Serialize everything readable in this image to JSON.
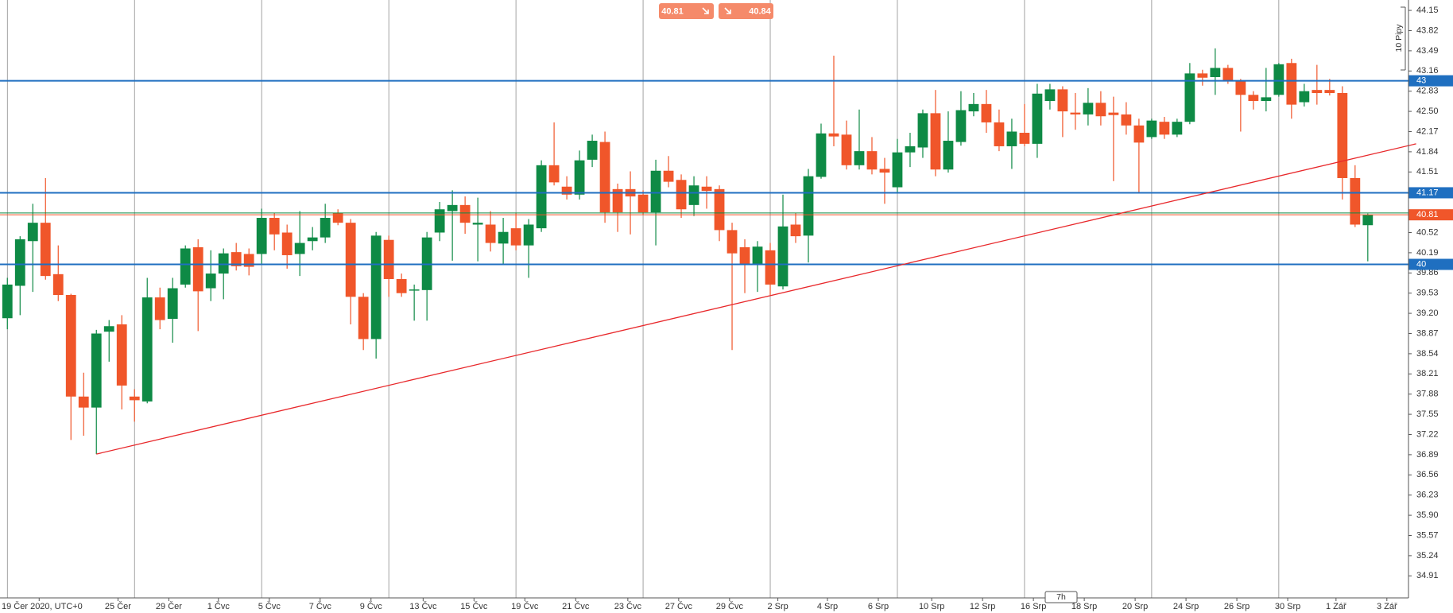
{
  "chart_data": {
    "type": "candlestick",
    "up_color": "#0e8a45",
    "down_color": "#f0562a",
    "open": [
      39.12,
      39.65,
      40.38,
      40.68,
      39.84,
      39.5,
      37.84,
      37.66,
      38.9,
      39.02,
      37.84,
      37.76,
      39.46,
      39.11,
      39.67,
      40.28,
      39.61,
      39.85,
      40.2,
      40.17,
      40.17,
      40.76,
      40.52,
      40.17,
      40.38,
      40.44,
      40.84,
      40.68,
      39.47,
      38.78,
      40.4,
      39.76,
      39.58,
      39.58,
      40.52,
      40.87,
      40.97,
      40.65,
      40.65,
      40.34,
      40.59,
      40.31,
      40.59,
      41.62,
      41.27,
      41.14,
      41.71,
      42.0,
      41.23,
      41.23,
      41.14,
      40.85,
      41.53,
      41.38,
      40.97,
      41.27,
      41.23,
      40.56,
      40.28,
      39.99,
      40.23,
      39.64,
      40.65,
      40.47,
      41.43,
      42.14,
      42.12,
      41.62,
      41.85,
      41.56,
      41.26,
      41.83,
      41.91,
      42.47,
      41.55,
      42.0,
      42.5,
      42.62,
      42.32,
      41.93,
      42.15,
      41.97,
      42.67,
      42.86,
      42.48,
      42.45,
      42.64,
      42.48,
      42.45,
      42.27,
      42.08,
      42.33,
      42.12,
      42.33,
      43.12,
      43.06,
      43.21,
      43.0,
      42.77,
      42.67,
      42.77,
      43.29,
      42.65,
      42.85,
      42.85,
      42.8,
      41.41,
      40.64
    ],
    "high": [
      39.78,
      40.46,
      40.99,
      41.41,
      40.31,
      39.52,
      38.23,
      38.93,
      39.09,
      39.17,
      37.96,
      39.78,
      39.62,
      39.78,
      40.31,
      40.41,
      40.23,
      40.26,
      40.35,
      40.26,
      40.91,
      40.84,
      40.65,
      40.87,
      40.61,
      40.99,
      40.9,
      40.74,
      39.53,
      40.53,
      40.47,
      39.85,
      39.67,
      40.53,
      41.02,
      41.21,
      41.11,
      41.09,
      40.87,
      40.76,
      40.84,
      40.74,
      41.7,
      42.32,
      41.44,
      41.86,
      42.12,
      42.17,
      41.32,
      41.52,
      41.21,
      41.71,
      41.77,
      41.47,
      41.44,
      41.44,
      41.29,
      40.68,
      40.41,
      40.38,
      40.35,
      41.14,
      40.84,
      41.56,
      42.3,
      43.41,
      42.35,
      42.53,
      42.08,
      41.74,
      42.05,
      42.15,
      42.53,
      42.85,
      42.5,
      42.83,
      42.8,
      42.85,
      42.53,
      42.38,
      42.62,
      42.95,
      42.95,
      42.91,
      42.8,
      42.88,
      42.83,
      42.74,
      42.65,
      42.38,
      42.38,
      42.41,
      42.38,
      43.29,
      43.18,
      43.53,
      43.26,
      43.03,
      42.83,
      43.21,
      43.29,
      43.36,
      42.95,
      43.26,
      43.03,
      42.91,
      41.62,
      40.83
    ],
    "low": [
      38.94,
      39.17,
      39.55,
      39.75,
      39.4,
      37.13,
      37.2,
      36.9,
      38.41,
      37.63,
      37.43,
      37.73,
      38.94,
      38.72,
      39.62,
      38.91,
      39.4,
      39.43,
      39.9,
      39.82,
      40.0,
      40.23,
      39.93,
      39.81,
      40.23,
      40.35,
      40.64,
      39.02,
      38.6,
      38.46,
      39.47,
      39.47,
      39.08,
      39.08,
      40.38,
      40.06,
      40.5,
      40.05,
      40.21,
      40.0,
      40.23,
      39.78,
      40.53,
      41.29,
      41.06,
      41.06,
      41.59,
      40.68,
      40.53,
      40.49,
      40.81,
      40.31,
      41.26,
      40.76,
      40.79,
      40.91,
      40.38,
      38.6,
      39.53,
      39.55,
      39.5,
      39.59,
      40.35,
      40.03,
      41.4,
      41.93,
      41.55,
      41.55,
      41.47,
      40.99,
      41.17,
      41.59,
      41.74,
      41.44,
      41.5,
      41.94,
      42.42,
      42.15,
      41.85,
      41.56,
      41.93,
      41.74,
      42.53,
      42.08,
      42.2,
      42.27,
      42.27,
      41.36,
      42.12,
      41.17,
      42.05,
      42.05,
      42.08,
      42.29,
      42.92,
      42.77,
      42.95,
      42.17,
      42.53,
      42.5,
      42.74,
      42.38,
      42.58,
      42.61,
      42.76,
      41.06,
      40.61,
      40.05
    ],
    "close": [
      39.67,
      40.41,
      40.68,
      39.81,
      39.5,
      37.84,
      37.66,
      38.87,
      38.99,
      38.02,
      37.78,
      39.46,
      39.09,
      39.61,
      40.26,
      39.56,
      39.85,
      40.18,
      39.97,
      39.96,
      40.76,
      40.49,
      40.15,
      40.35,
      40.44,
      40.76,
      40.68,
      39.47,
      38.78,
      40.47,
      39.76,
      39.53,
      39.59,
      40.44,
      40.9,
      40.97,
      40.68,
      40.68,
      40.35,
      40.53,
      40.31,
      40.65,
      41.62,
      41.34,
      41.14,
      41.7,
      42.02,
      40.85,
      40.85,
      41.11,
      40.85,
      41.53,
      41.35,
      40.9,
      41.29,
      41.2,
      40.56,
      40.18,
      39.99,
      40.29,
      39.67,
      40.62,
      40.46,
      41.44,
      42.14,
      42.09,
      41.62,
      41.85,
      41.55,
      41.5,
      41.83,
      41.93,
      42.47,
      41.55,
      42.02,
      42.52,
      42.62,
      42.32,
      41.93,
      42.17,
      41.97,
      42.79,
      42.86,
      42.5,
      42.45,
      42.64,
      42.42,
      42.44,
      42.27,
      41.99,
      42.35,
      42.12,
      42.33,
      43.12,
      43.05,
      43.21,
      43.0,
      42.77,
      42.67,
      42.73,
      43.27,
      42.61,
      42.83,
      42.8,
      42.8,
      41.41,
      40.65,
      40.81
    ],
    "xlim": [
      -0.58,
      110.2
    ],
    "ylim": [
      34.55,
      44.32
    ],
    "yticks": [
      44.15,
      43.82,
      43.49,
      43.16,
      42.83,
      {
        "value": 42.5,
        "label": "42.50"
      },
      42.17,
      41.84,
      41.51,
      40.52,
      40.19,
      39.86,
      39.53,
      {
        "value": 39.2,
        "label": "39.20"
      },
      38.87,
      38.54,
      38.21,
      37.88,
      37.55,
      37.22,
      36.89,
      36.56,
      36.23,
      {
        "value": 35.9,
        "label": "35.90"
      },
      35.57,
      35.24,
      34.91
    ],
    "xticks": [
      {
        "value": 2.5,
        "label": "19 Čer 2020, UTC+0"
      },
      {
        "value": 8.7,
        "label": "25 Čer"
      },
      {
        "value": 12.7,
        "label": "29 Čer"
      },
      {
        "value": 16.6,
        "label": "1 Čvc"
      },
      {
        "value": 20.6,
        "label": "5 Čvc"
      },
      {
        "value": 24.6,
        "label": "7 Čvc"
      },
      {
        "value": 28.6,
        "label": "9 Čvc"
      },
      {
        "value": 32.7,
        "label": "13 Čvc"
      },
      {
        "value": 36.7,
        "label": "15 Čvc"
      },
      {
        "value": 40.7,
        "label": "19 Čvc"
      },
      {
        "value": 44.7,
        "label": "21 Čvc"
      },
      {
        "value": 48.8,
        "label": "23 Čvc"
      },
      {
        "value": 52.8,
        "label": "27 Čvc"
      },
      {
        "value": 56.8,
        "label": "29 Čvc"
      },
      {
        "value": 60.6,
        "label": "2 Srp"
      },
      {
        "value": 64.5,
        "label": "4 Srp"
      },
      {
        "value": 68.5,
        "label": "6 Srp"
      },
      {
        "value": 72.7,
        "label": "10 Srp"
      },
      {
        "value": 76.7,
        "label": "12 Srp"
      },
      {
        "value": 80.7,
        "label": "16 Srp"
      },
      {
        "value": 84.7,
        "label": "18 Srp"
      },
      {
        "value": 88.7,
        "label": "20 Srp"
      },
      {
        "value": 92.7,
        "label": "24 Srp"
      },
      {
        "value": 96.7,
        "label": "26 Srp"
      },
      {
        "value": 100.7,
        "label": "30 Srp"
      },
      {
        "value": 104.5,
        "label": "1 Zář"
      },
      {
        "value": 108.5,
        "label": "3 Zář"
      }
    ],
    "xgrid": [
      0,
      10,
      20,
      30,
      40,
      50,
      60,
      70,
      80,
      90,
      100
    ],
    "levels": [
      43,
      41.17,
      40
    ],
    "level_color": "#1f6fc0",
    "sell_price": 40.81,
    "buy_price": 40.84,
    "trendline": {
      "x": [
        7,
        110.8
      ],
      "values": [
        36.9,
        41.97
      ],
      "color": "#e8282b"
    },
    "scale_label": "10 Pipy",
    "timeframe_label": "7h"
  }
}
